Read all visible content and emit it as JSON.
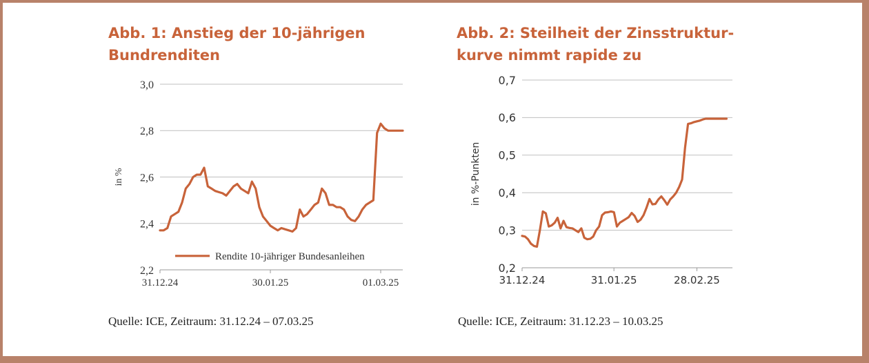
{
  "colors": {
    "series": "#c8633a",
    "title": "#c8633a",
    "grid": "#bfbfbf",
    "frame": "#b8826a"
  },
  "chart_data": [
    {
      "type": "line",
      "title_line1": "Abb. 1: Anstieg der 10-jährigen",
      "title_line2": "Bundrenditen",
      "ylabel": "in %",
      "xlabel": "",
      "ylim": [
        2.2,
        3.0
      ],
      "yticks": [
        2.2,
        2.4,
        2.6,
        2.8,
        3.0
      ],
      "ytick_labels": [
        "2,2",
        "2,4",
        "2,6",
        "2,8",
        "3,0"
      ],
      "xlim": [
        0,
        66
      ],
      "xticks": [
        0,
        30,
        60
      ],
      "xtick_labels": [
        "31.12.24",
        "30.01.25",
        "01.03.25"
      ],
      "legend": "Rendite 10-jähriger Bundesanleihen",
      "legend_position": "bottom-left",
      "source": "Quelle: ICE, Zeitraum: 31.12.24 – 07.03.25",
      "series": [
        {
          "name": "Rendite 10-jähriger Bundesanleihen",
          "x": [
            0,
            1,
            2,
            3,
            4,
            5,
            6,
            7,
            8,
            9,
            10,
            11,
            12,
            13,
            14,
            15,
            16,
            17,
            18,
            19,
            20,
            21,
            22,
            23,
            24,
            25,
            26,
            27,
            28,
            29,
            30,
            31,
            32,
            33,
            34,
            35,
            36,
            37,
            38,
            39,
            40,
            41,
            42,
            43,
            44,
            45,
            46,
            47,
            48,
            49,
            50,
            51,
            52,
            53,
            54,
            55,
            56,
            57,
            58,
            59,
            60,
            61,
            62,
            63,
            64,
            65,
            66
          ],
          "values": [
            2.37,
            2.37,
            2.38,
            2.43,
            2.44,
            2.45,
            2.49,
            2.55,
            2.57,
            2.6,
            2.61,
            2.61,
            2.64,
            2.56,
            2.55,
            2.54,
            2.535,
            2.53,
            2.52,
            2.54,
            2.56,
            2.57,
            2.55,
            2.54,
            2.53,
            2.58,
            2.55,
            2.47,
            2.43,
            2.41,
            2.39,
            2.38,
            2.37,
            2.38,
            2.375,
            2.37,
            2.365,
            2.38,
            2.46,
            2.43,
            2.44,
            2.46,
            2.48,
            2.49,
            2.55,
            2.53,
            2.48,
            2.48,
            2.47,
            2.47,
            2.46,
            2.43,
            2.415,
            2.41,
            2.43,
            2.46,
            2.48,
            2.49,
            2.5,
            2.79,
            2.83,
            2.81,
            2.8,
            2.8,
            2.8,
            2.8,
            2.8
          ]
        }
      ]
    },
    {
      "type": "line",
      "title_line1": "Abb. 2: Steilheit der Zinsstruktur-",
      "title_line2": "kurve nimmt rapide zu",
      "ylabel": "in %-Punkten",
      "xlabel": "",
      "ylim": [
        0.2,
        0.7
      ],
      "yticks": [
        0.2,
        0.3,
        0.4,
        0.5,
        0.6,
        0.7
      ],
      "ytick_labels": [
        "0,2",
        "0,3",
        "0,4",
        "0,5",
        "0,6",
        "0,7"
      ],
      "xlim": [
        0,
        71
      ],
      "xticks": [
        0,
        31,
        59
      ],
      "xtick_labels": [
        "31.12.24",
        "31.01.25",
        "28.02.25"
      ],
      "source": "Quelle: ICE, Zeitraum: 31.12.23 – 10.03.25",
      "series": [
        {
          "name": "Zinsstrukturkurve",
          "x": [
            0,
            1,
            2,
            3,
            4,
            5,
            6,
            7,
            8,
            9,
            10,
            11,
            12,
            13,
            14,
            15,
            16,
            17,
            18,
            19,
            20,
            21,
            22,
            23,
            24,
            25,
            26,
            27,
            28,
            29,
            30,
            31,
            32,
            33,
            34,
            35,
            36,
            37,
            38,
            39,
            40,
            41,
            42,
            43,
            44,
            45,
            46,
            47,
            48,
            49,
            50,
            51,
            52,
            53,
            54,
            55,
            56,
            57,
            58,
            59,
            60,
            61,
            62,
            63,
            64,
            65,
            66,
            67,
            68,
            69
          ],
          "values": [
            0.285,
            0.283,
            0.276,
            0.264,
            0.258,
            0.256,
            0.3,
            0.35,
            0.345,
            0.31,
            0.313,
            0.32,
            0.333,
            0.305,
            0.325,
            0.308,
            0.306,
            0.305,
            0.3,
            0.295,
            0.305,
            0.28,
            0.276,
            0.277,
            0.283,
            0.3,
            0.31,
            0.34,
            0.347,
            0.348,
            0.35,
            0.348,
            0.31,
            0.32,
            0.325,
            0.33,
            0.335,
            0.346,
            0.338,
            0.322,
            0.328,
            0.34,
            0.36,
            0.383,
            0.369,
            0.37,
            0.382,
            0.39,
            0.38,
            0.368,
            0.382,
            0.39,
            0.4,
            0.415,
            0.435,
            0.52,
            0.583,
            0.585,
            0.588,
            0.59,
            0.592,
            0.595,
            0.597,
            0.597,
            0.597,
            0.597,
            0.597,
            0.597,
            0.597,
            0.597
          ]
        }
      ]
    }
  ]
}
